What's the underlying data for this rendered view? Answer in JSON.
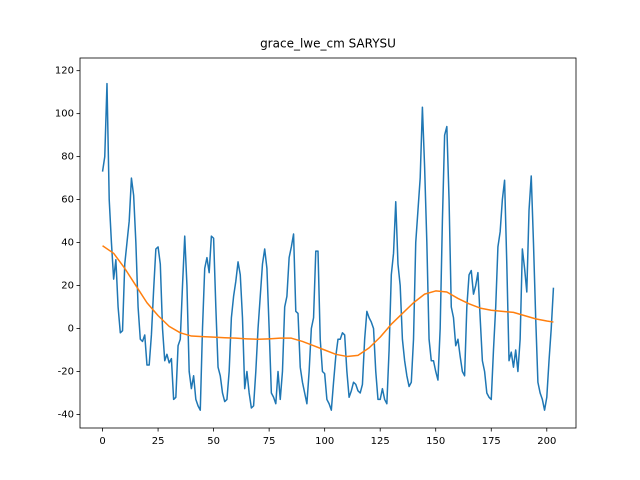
{
  "chart_data": {
    "type": "line",
    "title": "grace_lwe_cm SARYSU",
    "xlim": [
      -10.15,
      213.15
    ],
    "ylim": [
      -46.3,
      125.9
    ],
    "xticks": [
      0,
      25,
      50,
      75,
      100,
      125,
      150,
      175,
      200
    ],
    "yticks": [
      -40,
      -20,
      0,
      20,
      40,
      60,
      80,
      100,
      120
    ],
    "grid": false,
    "series": [
      {
        "color": "#1f77b4",
        "x": [
          0,
          1,
          2,
          3,
          4,
          5,
          6,
          7,
          8,
          9,
          10,
          11,
          12,
          13,
          14,
          15,
          16,
          17,
          18,
          19,
          20,
          21,
          22,
          23,
          24,
          25,
          26,
          27,
          28,
          29,
          30,
          31,
          32,
          33,
          34,
          35,
          36,
          37,
          38,
          39,
          40,
          41,
          42,
          43,
          44,
          45,
          46,
          47,
          48,
          49,
          50,
          51,
          52,
          53,
          54,
          55,
          56,
          57,
          58,
          59,
          60,
          61,
          62,
          63,
          64,
          65,
          66,
          67,
          68,
          69,
          70,
          71,
          72,
          73,
          74,
          75,
          76,
          77,
          78,
          79,
          80,
          81,
          82,
          83,
          84,
          85,
          86,
          87,
          88,
          89,
          90,
          91,
          92,
          93,
          94,
          95,
          96,
          97,
          98,
          99,
          100,
          101,
          102,
          103,
          104,
          105,
          106,
          107,
          108,
          109,
          110,
          111,
          112,
          113,
          114,
          115,
          116,
          117,
          118,
          119,
          120,
          121,
          122,
          123,
          124,
          125,
          126,
          127,
          128,
          129,
          130,
          131,
          132,
          133,
          134,
          135,
          136,
          137,
          138,
          139,
          140,
          141,
          142,
          143,
          144,
          145,
          146,
          147,
          148,
          149,
          150,
          151,
          152,
          153,
          154,
          155,
          156,
          157,
          158,
          159,
          160,
          161,
          162,
          163,
          164,
          165,
          166,
          167,
          168,
          169,
          170,
          171,
          172,
          173,
          174,
          175,
          176,
          177,
          178,
          179,
          180,
          181,
          182,
          183,
          184,
          185,
          186,
          187,
          188,
          189,
          190,
          191,
          192,
          193,
          194,
          195,
          196,
          197,
          198,
          199,
          200,
          201,
          202,
          203
        ],
        "values": [
          73,
          80,
          114,
          60,
          40,
          23,
          32,
          10,
          -2,
          -1,
          30,
          40,
          50,
          70,
          62,
          40,
          10,
          -5,
          -6,
          -3,
          -17,
          -17,
          -3,
          18,
          37,
          38,
          30,
          0,
          -15,
          -12,
          -16,
          -14,
          -33,
          -32,
          -8,
          -5,
          20,
          43,
          20,
          -20,
          -28,
          -22,
          -33,
          -36,
          -38,
          0,
          28,
          33,
          26,
          43,
          42,
          10,
          -18,
          -22,
          -30,
          -34,
          -33,
          -20,
          5,
          15,
          22,
          31,
          25,
          5,
          -28,
          -20,
          -30,
          -37,
          -36,
          -20,
          0,
          15,
          30,
          37,
          28,
          0,
          -30,
          -32,
          -35,
          -20,
          -33,
          -20,
          10,
          15,
          33,
          38,
          44,
          8,
          7,
          -18,
          -25,
          -30,
          -35,
          -20,
          0,
          5,
          36,
          36,
          -5,
          -20,
          -21,
          -33,
          -35,
          -38,
          -25,
          -13,
          -5,
          -5,
          -2,
          -3,
          -20,
          -32,
          -29,
          -25,
          -26,
          -29,
          -30,
          -26,
          -5,
          8,
          5,
          3,
          0,
          -20,
          -33,
          -33,
          -28,
          -33,
          -35,
          -10,
          25,
          35,
          59,
          30,
          20,
          -5,
          -15,
          -22,
          -27,
          -25,
          -5,
          40,
          55,
          70,
          103,
          75,
          40,
          -5,
          -15,
          -15,
          -20,
          -24,
          0,
          50,
          90,
          94,
          60,
          10,
          5,
          -8,
          -5,
          -13,
          -20,
          -22,
          10,
          25,
          27,
          16,
          20,
          26,
          5,
          -15,
          -20,
          -30,
          -32,
          -33,
          -10,
          10,
          38,
          45,
          60,
          69,
          30,
          -15,
          -11,
          -18,
          -10,
          -20,
          -5,
          37,
          28,
          17,
          55,
          71,
          40,
          5,
          -25,
          -30,
          -33,
          -38,
          -32,
          -15,
          0,
          19
        ]
      },
      {
        "color": "#ff7f0e",
        "x": [
          0,
          5,
          10,
          15,
          20,
          25,
          30,
          35,
          40,
          45,
          50,
          55,
          60,
          65,
          70,
          75,
          80,
          85,
          90,
          95,
          100,
          105,
          110,
          115,
          120,
          125,
          130,
          135,
          140,
          145,
          150,
          155,
          160,
          165,
          170,
          175,
          180,
          185,
          190,
          195,
          200,
          203
        ],
        "values": [
          38.5,
          35,
          28,
          20,
          12,
          6,
          1,
          -2,
          -3.5,
          -3.8,
          -4,
          -4.3,
          -4.5,
          -4.8,
          -5,
          -4.8,
          -4.5,
          -4.5,
          -6,
          -8,
          -10,
          -12,
          -13,
          -12.5,
          -9,
          -4,
          2,
          7,
          12,
          16,
          17.5,
          17,
          14,
          11.5,
          9.5,
          8.5,
          8,
          7.5,
          6,
          4.5,
          3.5,
          3
        ]
      }
    ]
  }
}
